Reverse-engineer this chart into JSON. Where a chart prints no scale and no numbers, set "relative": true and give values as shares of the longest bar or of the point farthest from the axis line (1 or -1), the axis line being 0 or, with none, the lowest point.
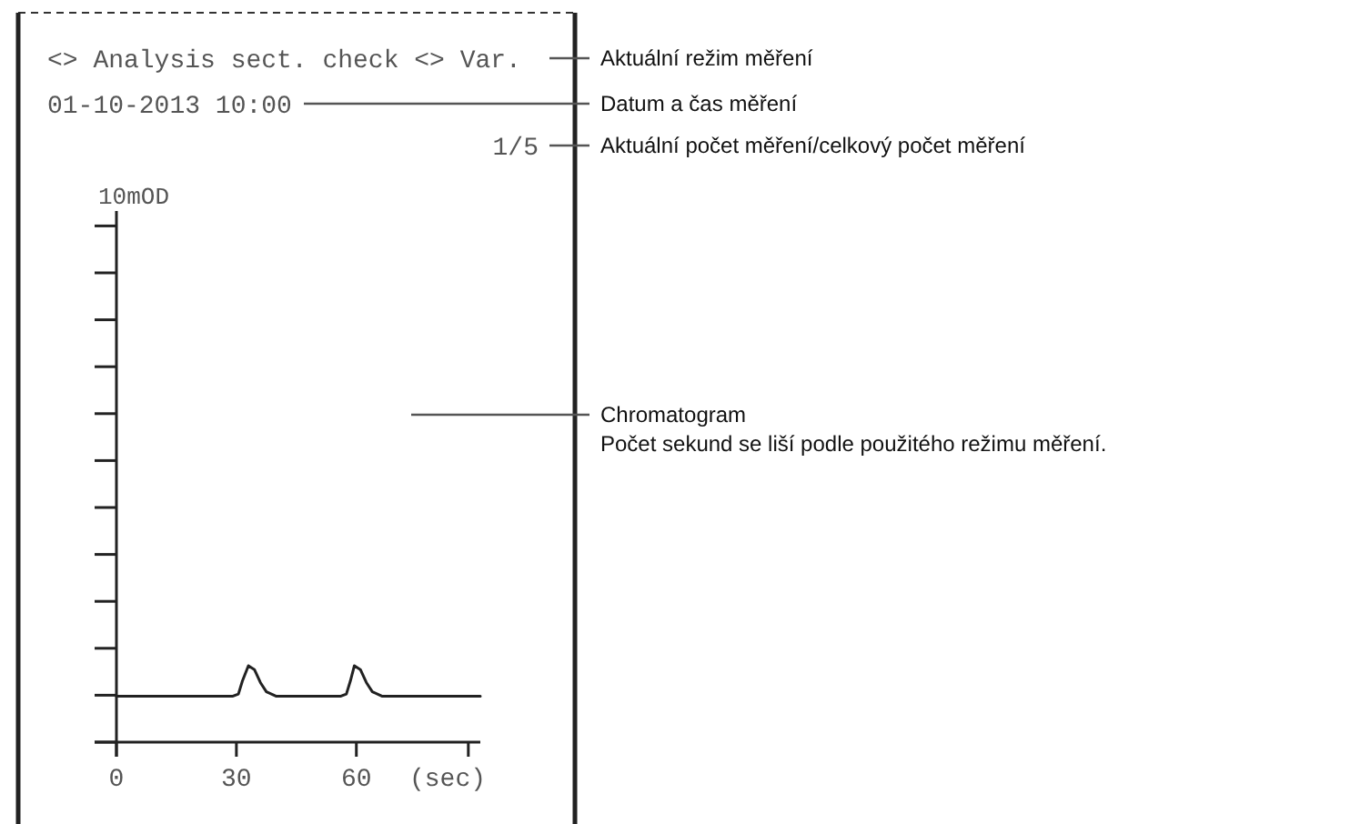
{
  "chart_data": {
    "type": "line",
    "title": "<> Analysis sect. check <>  Var.",
    "subtitle": "01-10-2013 10:00",
    "xlabel": "(sec)",
    "relative": true,
    "x": [
      0,
      29,
      30.5,
      31.5,
      33,
      34.5,
      36,
      37.5,
      40,
      56,
      57.5,
      58.5,
      59.5,
      61,
      62.5,
      64,
      66.5,
      91
    ],
    "series": [
      {
        "color": "#222222",
        "values": [
          0.6,
          0.6,
          0.63,
          0.8,
          1,
          0.95,
          0.78,
          0.66,
          0.6,
          0.6,
          0.63,
          0.8,
          1,
          0.95,
          0.78,
          0.66,
          0.6,
          0.6
        ]
      }
    ],
    "xlim": [
      0,
      91
    ],
    "xticks": [
      0,
      30,
      60,
      {
        "value": 88,
        "label": null
      }
    ],
    "annotations": [
      "1/5",
      "Aktuální režim měření",
      "Datum a čas měření",
      "Aktuální počet měření/celkový počet měření",
      "Chromatogram",
      "Počet sekund se liší podle použitého režimu měření.",
      "10mOD"
    ]
  }
}
